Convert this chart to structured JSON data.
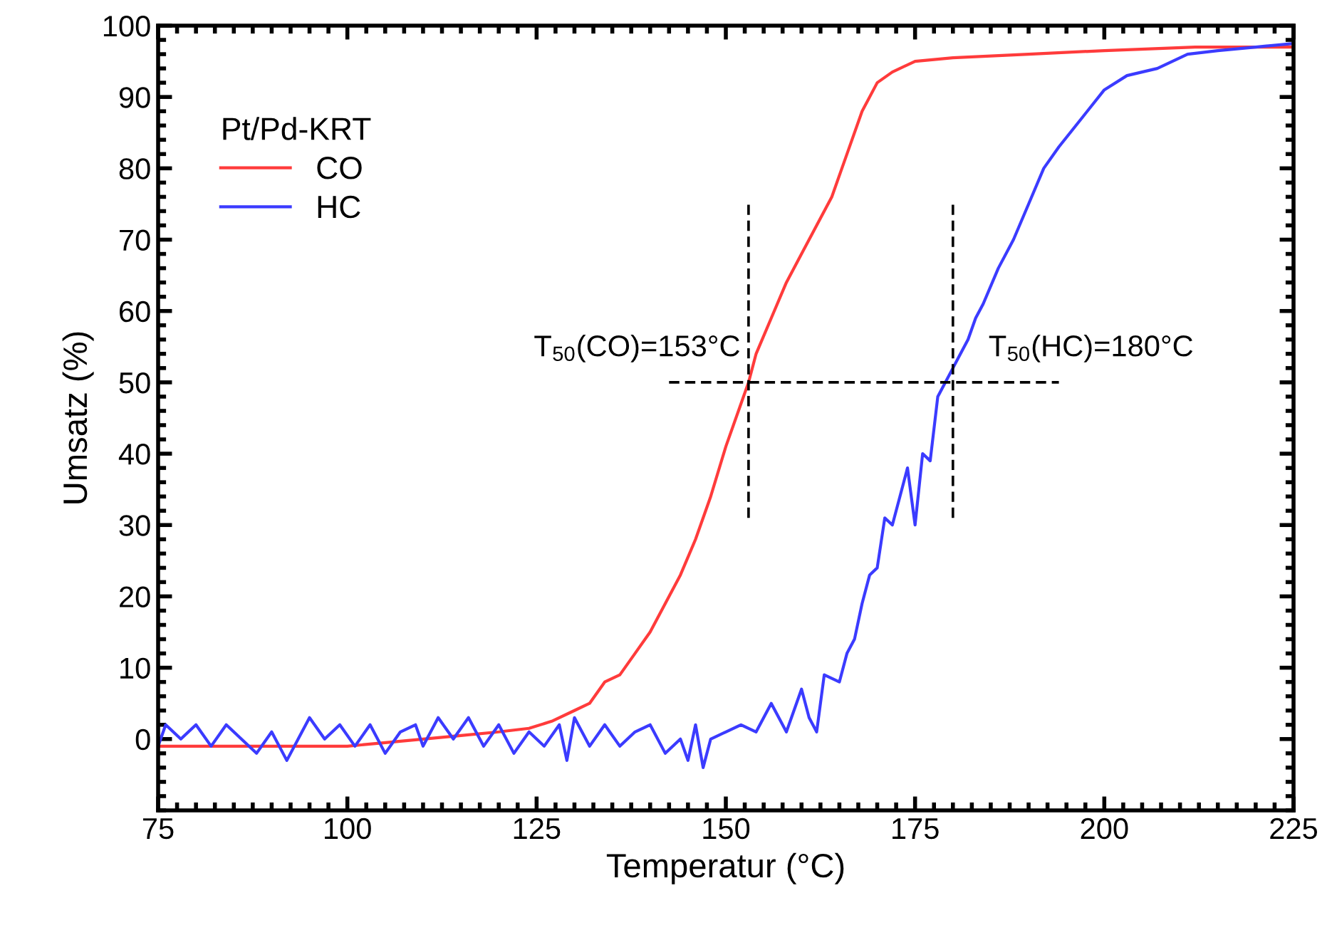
{
  "chart_data": {
    "type": "line",
    "xlabel": "Temperatur (°C)",
    "ylabel": "Umsatz (%)",
    "legend_title": "Pt/Pd-KRT",
    "legend": "top left",
    "grid": false,
    "line_style": "solid",
    "marker": "none",
    "xlim": [
      75,
      225
    ],
    "xticks": [
      75,
      100,
      125,
      150,
      175,
      200,
      225
    ],
    "ylim": [
      -10,
      100
    ],
    "yticks": [
      0,
      10,
      20,
      30,
      40,
      50,
      60,
      70,
      80,
      90,
      100
    ],
    "series": [
      {
        "name": "CO",
        "color": "#ff3b3b",
        "x": [
          75,
          80,
          85,
          90,
          95,
          100,
          105,
          110,
          115,
          120,
          124,
          127,
          130,
          132,
          134,
          136,
          138,
          140,
          142,
          144,
          146,
          148,
          150,
          152,
          153,
          154,
          156,
          158,
          160,
          162,
          164,
          166,
          168,
          170,
          172,
          175,
          180,
          190,
          200,
          212,
          225
        ],
        "values": [
          -1,
          -1,
          -1,
          -1,
          -1,
          -1,
          -0.5,
          0,
          0.5,
          1,
          1.5,
          2.5,
          4,
          5,
          8,
          9,
          12,
          15,
          19,
          23,
          28,
          34,
          41,
          47,
          50,
          54,
          59,
          64,
          68,
          72,
          76,
          82,
          88,
          92,
          93.5,
          95,
          95.5,
          96,
          96.5,
          97,
          97
        ]
      },
      {
        "name": "HC",
        "color": "#3b3bff",
        "x": [
          75,
          76,
          78,
          80,
          82,
          84,
          86,
          88,
          90,
          92,
          94,
          95,
          97,
          99,
          101,
          103,
          105,
          107,
          109,
          110,
          112,
          114,
          116,
          118,
          120,
          122,
          124,
          126,
          128,
          129,
          130,
          132,
          134,
          136,
          138,
          140,
          142,
          144,
          145,
          146,
          147,
          148,
          150,
          152,
          154,
          156,
          157,
          158,
          160,
          161,
          162,
          163,
          165,
          166,
          167,
          168,
          169,
          170,
          171,
          172,
          173,
          174,
          175,
          176,
          177,
          178,
          179,
          180,
          181,
          182,
          183,
          184,
          186,
          188,
          190,
          192,
          194,
          197,
          200,
          203,
          207,
          211,
          215,
          220,
          225
        ],
        "values": [
          -1,
          2,
          0,
          2,
          -1,
          2,
          0,
          -2,
          1,
          -3,
          1,
          3,
          0,
          2,
          -1,
          2,
          -2,
          1,
          2,
          -1,
          3,
          0,
          3,
          -1,
          2,
          -2,
          1,
          -1,
          2,
          -3,
          3,
          -1,
          2,
          -1,
          1,
          2,
          -2,
          0,
          -3,
          2,
          -4,
          0,
          1,
          2,
          1,
          5,
          3,
          1,
          7,
          3,
          1,
          9,
          8,
          12,
          14,
          19,
          23,
          24,
          31,
          30,
          34,
          38,
          30,
          40,
          39,
          48,
          50,
          52,
          54,
          56,
          59,
          61,
          66,
          70,
          75,
          80,
          83,
          87,
          91,
          93,
          94,
          96,
          96.5,
          97,
          97.5
        ]
      },
      {
        "type": "line",
        "color": "#000000",
        "line_style": "dashed",
        "x": [
          153,
          153
        ],
        "values": [
          31,
          75
        ]
      },
      {
        "type": "line",
        "color": "#000000",
        "line_style": "dashed",
        "x": [
          180,
          180
        ],
        "values": [
          31,
          75
        ]
      },
      {
        "type": "line",
        "color": "#000000",
        "line_style": "dashed",
        "x": [
          142.5,
          194
        ],
        "values": [
          50,
          50
        ]
      }
    ],
    "annotations": [
      {
        "text": "T$_{50}$(CO)=153°C",
        "x": 153,
        "y": 50
      },
      {
        "text": "T$_{50}$(HC)=180°C",
        "x": 180,
        "y": 50
      }
    ]
  }
}
